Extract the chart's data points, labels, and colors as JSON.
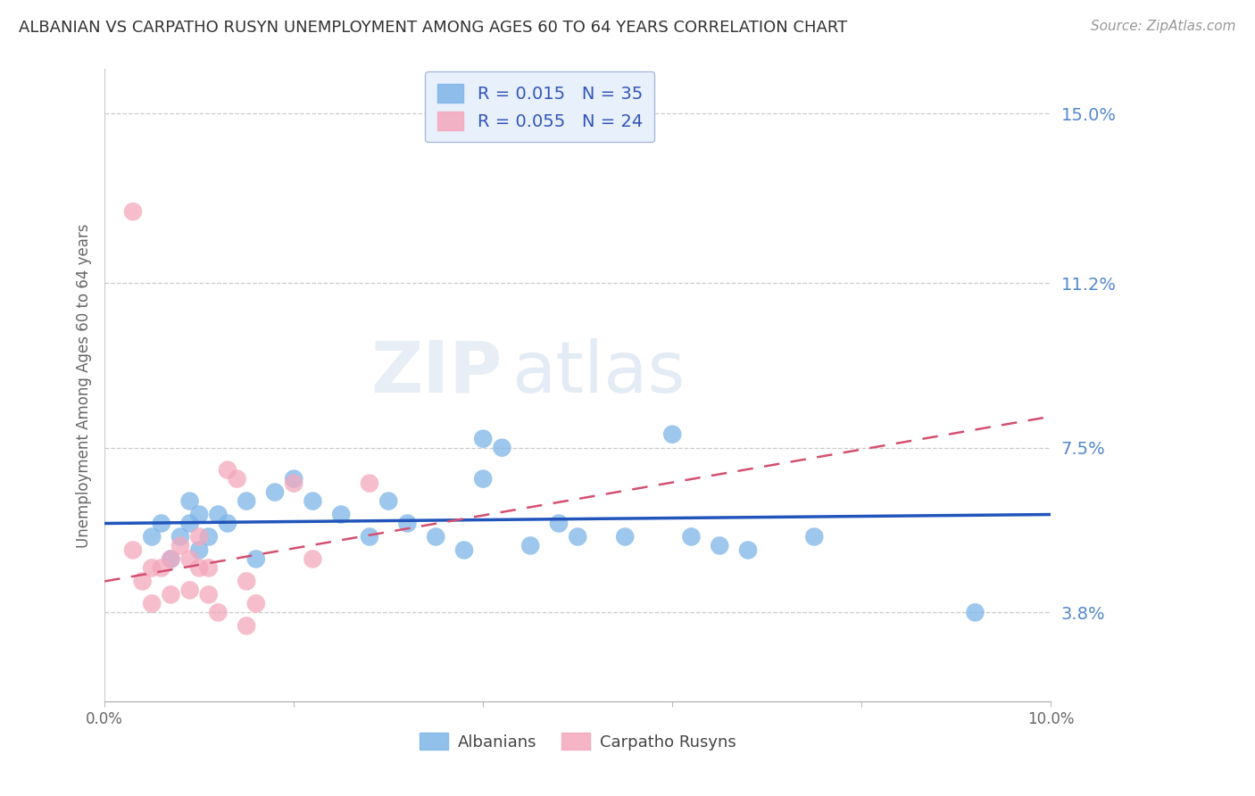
{
  "title": "ALBANIAN VS CARPATHO RUSYN UNEMPLOYMENT AMONG AGES 60 TO 64 YEARS CORRELATION CHART",
  "source": "Source: ZipAtlas.com",
  "ylabel": "Unemployment Among Ages 60 to 64 years",
  "xlim": [
    0.0,
    0.1
  ],
  "ylim": [
    0.018,
    0.16
  ],
  "xticks": [
    0.0,
    0.02,
    0.04,
    0.06,
    0.08,
    0.1
  ],
  "xtick_labels": [
    "0.0%",
    "",
    "",
    "",
    "",
    "10.0%"
  ],
  "ytick_positions": [
    0.038,
    0.075,
    0.112,
    0.15
  ],
  "ytick_labels": [
    "3.8%",
    "7.5%",
    "11.2%",
    "15.0%"
  ],
  "albanian_R": 0.015,
  "albanian_N": 35,
  "carpatho_R": 0.055,
  "carpatho_N": 24,
  "albanian_color": "#7eb5e8",
  "carpatho_color": "#f4a8bc",
  "albanian_line_color": "#2255bb",
  "carpatho_line_color": "#d45070",
  "legend_box_color": "#e8f0fb",
  "legend_border_color": "#aabbd8",
  "albanian_x": [
    0.005,
    0.006,
    0.007,
    0.008,
    0.009,
    0.009,
    0.01,
    0.01,
    0.011,
    0.012,
    0.013,
    0.015,
    0.016,
    0.018,
    0.02,
    0.022,
    0.025,
    0.028,
    0.03,
    0.032,
    0.035,
    0.038,
    0.04,
    0.04,
    0.042,
    0.045,
    0.048,
    0.05,
    0.055,
    0.06,
    0.062,
    0.065,
    0.068,
    0.075,
    0.092
  ],
  "albanian_y": [
    0.055,
    0.058,
    0.05,
    0.055,
    0.058,
    0.063,
    0.052,
    0.06,
    0.055,
    0.06,
    0.058,
    0.063,
    0.05,
    0.065,
    0.068,
    0.063,
    0.06,
    0.055,
    0.063,
    0.058,
    0.055,
    0.052,
    0.077,
    0.068,
    0.075,
    0.053,
    0.058,
    0.055,
    0.055,
    0.078,
    0.055,
    0.053,
    0.052,
    0.055,
    0.038
  ],
  "carpatho_x": [
    0.003,
    0.004,
    0.005,
    0.005,
    0.006,
    0.007,
    0.007,
    0.008,
    0.009,
    0.009,
    0.01,
    0.01,
    0.011,
    0.011,
    0.012,
    0.013,
    0.014,
    0.015,
    0.015,
    0.016,
    0.02,
    0.022,
    0.028,
    0.003
  ],
  "carpatho_y": [
    0.052,
    0.045,
    0.048,
    0.04,
    0.048,
    0.05,
    0.042,
    0.053,
    0.05,
    0.043,
    0.048,
    0.055,
    0.048,
    0.042,
    0.038,
    0.07,
    0.068,
    0.045,
    0.035,
    0.04,
    0.067,
    0.05,
    0.067,
    0.128
  ],
  "albanian_trend_x": [
    0.0,
    0.1
  ],
  "albanian_trend_y": [
    0.058,
    0.06
  ],
  "carpatho_trend_x": [
    0.0,
    0.1
  ],
  "carpatho_trend_y": [
    0.045,
    0.082
  ]
}
